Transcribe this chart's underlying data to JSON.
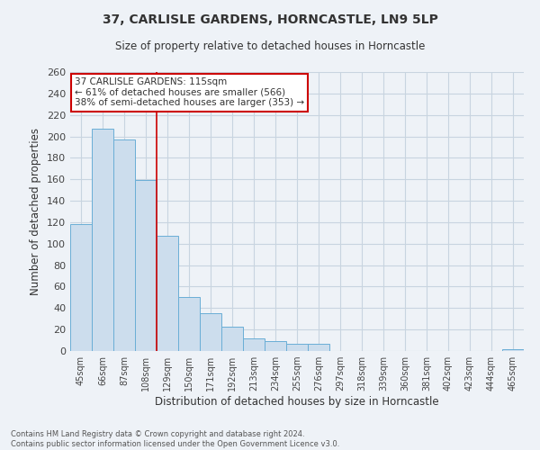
{
  "title": "37, CARLISLE GARDENS, HORNCASTLE, LN9 5LP",
  "subtitle": "Size of property relative to detached houses in Horncastle",
  "xlabel": "Distribution of detached houses by size in Horncastle",
  "ylabel": "Number of detached properties",
  "footer_line1": "Contains HM Land Registry data © Crown copyright and database right 2024.",
  "footer_line2": "Contains public sector information licensed under the Open Government Licence v3.0.",
  "bar_labels": [
    "45sqm",
    "66sqm",
    "87sqm",
    "108sqm",
    "129sqm",
    "150sqm",
    "171sqm",
    "192sqm",
    "213sqm",
    "234sqm",
    "255sqm",
    "276sqm",
    "297sqm",
    "318sqm",
    "339sqm",
    "360sqm",
    "381sqm",
    "402sqm",
    "423sqm",
    "444sqm",
    "465sqm"
  ],
  "bar_values": [
    118,
    207,
    197,
    159,
    107,
    50,
    35,
    23,
    12,
    9,
    7,
    7,
    0,
    0,
    0,
    0,
    0,
    0,
    0,
    0,
    2
  ],
  "bar_color": "#ccdded",
  "bar_edge_color": "#6aaed6",
  "ylim": [
    0,
    260
  ],
  "yticks": [
    0,
    20,
    40,
    60,
    80,
    100,
    120,
    140,
    160,
    180,
    200,
    220,
    240,
    260
  ],
  "property_bin_index": 3,
  "vline_color": "#cc0000",
  "annotation_title": "37 CARLISLE GARDENS: 115sqm",
  "annotation_line1": "← 61% of detached houses are smaller (566)",
  "annotation_line2": "38% of semi-detached houses are larger (353) →",
  "annotation_box_color": "#ffffff",
  "annotation_box_edge": "#cc0000",
  "grid_color": "#c8d4e0",
  "background_color": "#eef2f7"
}
